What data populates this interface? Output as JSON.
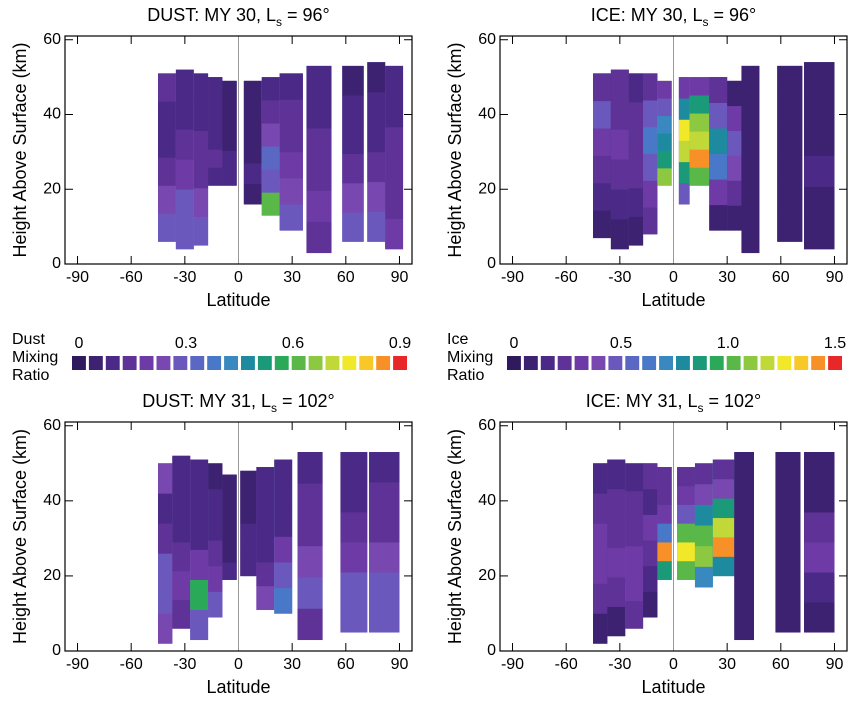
{
  "chart_data": [
    {
      "type": "heatmap",
      "title": "DUST: MY 30, L",
      "title_sub": "s",
      "title_end": " = 96°",
      "xlabel": "Latitude",
      "ylabel": "Height Above Surface (km)",
      "xlim": [
        -97,
        97
      ],
      "ylim": [
        0,
        61
      ],
      "xticks": [
        -90,
        -60,
        -30,
        0,
        30,
        60,
        90
      ],
      "yticks": [
        0,
        20,
        40,
        60
      ],
      "columns": [
        {
          "lat": [
            -45,
            -35
          ],
          "bottom": 6,
          "top": 51,
          "values": [
            0.3,
            0.25,
            0.15,
            0.1,
            0.1,
            0.12
          ]
        },
        {
          "lat": [
            -35,
            -25
          ],
          "bottom": 4,
          "top": 52,
          "values": [
            0.3,
            0.3,
            0.2,
            0.12,
            0.1,
            0.1
          ]
        },
        {
          "lat": [
            -25,
            -17
          ],
          "bottom": 5,
          "top": 51,
          "values": [
            0.3,
            0.25,
            0.15,
            0.12,
            0.1,
            0.1
          ]
        },
        {
          "lat": [
            -17,
            -9
          ],
          "bottom": 21,
          "top": 50,
          "values": [
            0.1,
            0.12,
            0.1,
            0.08,
            0.08,
            0.1
          ]
        },
        {
          "lat": [
            -9,
            -1
          ],
          "bottom": 21,
          "top": 49,
          "values": [
            0.08,
            0.08,
            0.06,
            0.06,
            0.06,
            0.06
          ]
        },
        {
          "lat": [
            3,
            13
          ],
          "bottom": 16,
          "top": 49,
          "values": [
            0.06,
            0.08,
            0.06,
            0.06,
            0.05,
            0.06
          ]
        },
        {
          "lat": [
            13,
            23
          ],
          "bottom": 13,
          "top": 50,
          "values": [
            0.6,
            0.3,
            0.35,
            0.25,
            0.15,
            0.1
          ]
        },
        {
          "lat": [
            23,
            36
          ],
          "bottom": 9,
          "top": 51,
          "values": [
            0.3,
            0.25,
            0.2,
            0.15,
            0.12,
            0.1
          ]
        },
        {
          "lat": [
            38,
            52
          ],
          "bottom": 3,
          "top": 53,
          "values": [
            0.15,
            0.2,
            0.15,
            0.12,
            0.1,
            0.1
          ]
        },
        {
          "lat": [
            58,
            70
          ],
          "bottom": 6,
          "top": 53,
          "values": [
            0.3,
            0.25,
            0.15,
            0.1,
            0.08,
            0.06
          ]
        },
        {
          "lat": [
            72,
            82
          ],
          "bottom": 6,
          "top": 54,
          "values": [
            0.3,
            0.25,
            0.15,
            0.1,
            0.08,
            0.06
          ]
        },
        {
          "lat": [
            82,
            92
          ],
          "bottom": 4,
          "top": 53,
          "values": [
            0.2,
            0.15,
            0.15,
            0.12,
            0.1,
            0.08
          ]
        }
      ]
    },
    {
      "type": "heatmap",
      "title": "ICE: MY 30, L",
      "title_sub": "s",
      "title_end": " = 96°",
      "xlabel": "Latitude",
      "ylabel": "Height Above Surface (km)",
      "xlim": [
        -97,
        97
      ],
      "ylim": [
        0,
        61
      ],
      "xticks": [
        -90,
        -60,
        -30,
        0,
        30,
        60,
        90
      ],
      "yticks": [
        0,
        20,
        40,
        60
      ],
      "columns": [
        {
          "lat": [
            -45,
            -35
          ],
          "bottom": 7,
          "top": 51,
          "values": [
            0.1,
            0.15,
            0.2,
            0.3,
            0.5,
            0.2
          ]
        },
        {
          "lat": [
            -35,
            -25
          ],
          "bottom": 4,
          "top": 52,
          "values": [
            0.1,
            0.15,
            0.2,
            0.3,
            0.25,
            0.2
          ]
        },
        {
          "lat": [
            -25,
            -17
          ],
          "bottom": 5,
          "top": 51,
          "values": [
            0.1,
            0.15,
            0.2,
            0.2,
            0.2,
            0.15
          ]
        },
        {
          "lat": [
            -17,
            -9
          ],
          "bottom": 8,
          "top": 51,
          "values": [
            0.2,
            0.3,
            0.5,
            0.6,
            0.5,
            0.2
          ]
        },
        {
          "lat": [
            -9,
            -1
          ],
          "bottom": 21,
          "top": 49,
          "values": [
            1.1,
            0.9,
            0.8,
            0.7,
            0.5,
            0.3
          ]
        },
        {
          "lat": [
            3,
            9
          ],
          "bottom": 16,
          "top": 50,
          "values": [
            0.5,
            0.9,
            1.2,
            1.3,
            0.8,
            0.3
          ]
        },
        {
          "lat": [
            9,
            20
          ],
          "bottom": 21,
          "top": 50,
          "values": [
            1.0,
            1.4,
            1.2,
            1.1,
            0.9,
            0.3
          ]
        },
        {
          "lat": [
            20,
            30
          ],
          "bottom": 9,
          "top": 50,
          "values": [
            0.1,
            0.3,
            0.6,
            0.8,
            0.5,
            0.2
          ]
        },
        {
          "lat": [
            30,
            38
          ],
          "bottom": 9,
          "top": 49,
          "values": [
            0.1,
            0.2,
            0.4,
            0.5,
            0.3,
            0.1
          ]
        },
        {
          "lat": [
            38,
            48
          ],
          "bottom": 3,
          "top": 53,
          "values": [
            0.05,
            0.05,
            0.05,
            0.05,
            0.05,
            0.05
          ]
        },
        {
          "lat": [
            58,
            72
          ],
          "bottom": 6,
          "top": 53,
          "values": [
            0.05,
            0.05,
            0.05,
            0.05,
            0.05,
            0.05
          ]
        },
        {
          "lat": [
            73,
            90
          ],
          "bottom": 4,
          "top": 54,
          "values": [
            0.1,
            0.1,
            0.15,
            0.1,
            0.1,
            0.1
          ]
        }
      ]
    },
    {
      "type": "heatmap",
      "title": "DUST: MY 31, L",
      "title_sub": "s",
      "title_end": " = 102°",
      "xlabel": "Latitude",
      "ylabel": "Height Above Surface (km)",
      "xlim": [
        -97,
        97
      ],
      "ylim": [
        0,
        61
      ],
      "xticks": [
        -90,
        -60,
        -30,
        0,
        30,
        60,
        90
      ],
      "yticks": [
        0,
        20,
        40,
        60
      ],
      "columns": [
        {
          "lat": [
            -45,
            -37
          ],
          "bottom": 2,
          "top": 50,
          "values": [
            0.25,
            0.3,
            0.3,
            0.15,
            0.1,
            0.25
          ]
        },
        {
          "lat": [
            -37,
            -27
          ],
          "bottom": 6,
          "top": 52,
          "values": [
            0.15,
            0.2,
            0.15,
            0.1,
            0.08,
            0.08
          ]
        },
        {
          "lat": [
            -27,
            -17
          ],
          "bottom": 3,
          "top": 51,
          "values": [
            0.3,
            0.55,
            0.2,
            0.1,
            0.08,
            0.08
          ]
        },
        {
          "lat": [
            -17,
            -9
          ],
          "bottom": 9,
          "top": 50,
          "values": [
            0.3,
            0.2,
            0.15,
            0.1,
            0.08,
            0.06
          ]
        },
        {
          "lat": [
            -9,
            -1
          ],
          "bottom": 19,
          "top": 47,
          "values": [
            0.08,
            0.06,
            0.06,
            0.05,
            0.05,
            0.06
          ]
        },
        {
          "lat": [
            1,
            10
          ],
          "bottom": 20,
          "top": 48,
          "values": [
            0.1,
            0.08,
            0.08,
            0.06,
            0.05,
            0.06
          ]
        },
        {
          "lat": [
            10,
            20
          ],
          "bottom": 11,
          "top": 49,
          "values": [
            0.25,
            0.15,
            0.1,
            0.1,
            0.08,
            0.08
          ]
        },
        {
          "lat": [
            20,
            30
          ],
          "bottom": 10,
          "top": 51,
          "values": [
            0.4,
            0.3,
            0.2,
            0.1,
            0.08,
            0.08
          ]
        },
        {
          "lat": [
            33,
            47
          ],
          "bottom": 3,
          "top": 53,
          "values": [
            0.15,
            0.3,
            0.25,
            0.15,
            0.12,
            0.1
          ]
        },
        {
          "lat": [
            57,
            72
          ],
          "bottom": 5,
          "top": 53,
          "values": [
            0.3,
            0.3,
            0.2,
            0.12,
            0.1,
            0.08
          ]
        },
        {
          "lat": [
            73,
            90
          ],
          "bottom": 5,
          "top": 53,
          "values": [
            0.3,
            0.3,
            0.25,
            0.15,
            0.12,
            0.1
          ]
        }
      ]
    },
    {
      "type": "heatmap",
      "title": "ICE: MY 31, L",
      "title_sub": "s",
      "title_end": " = 102°",
      "xlabel": "Latitude",
      "ylabel": "Height Above Surface (km)",
      "xlim": [
        -97,
        97
      ],
      "ylim": [
        0,
        61
      ],
      "xticks": [
        -90,
        -60,
        -30,
        0,
        30,
        60,
        90
      ],
      "yticks": [
        0,
        20,
        40,
        60
      ],
      "columns": [
        {
          "lat": [
            -45,
            -37
          ],
          "bottom": 2,
          "top": 50,
          "values": [
            0.1,
            0.2,
            0.3,
            0.3,
            0.2,
            0.15
          ]
        },
        {
          "lat": [
            -37,
            -27
          ],
          "bottom": 4,
          "top": 51,
          "values": [
            0.1,
            0.2,
            0.3,
            0.25,
            0.2,
            0.15
          ]
        },
        {
          "lat": [
            -27,
            -17
          ],
          "bottom": 6,
          "top": 50,
          "values": [
            0.2,
            0.3,
            0.3,
            0.2,
            0.2,
            0.15
          ]
        },
        {
          "lat": [
            -17,
            -9
          ],
          "bottom": 9,
          "top": 50,
          "values": [
            0.1,
            0.15,
            0.2,
            0.3,
            0.15,
            0.2
          ]
        },
        {
          "lat": [
            -9,
            -1
          ],
          "bottom": 19,
          "top": 49,
          "values": [
            0.9,
            1.4,
            0.6,
            0.3,
            0.2,
            0.2
          ]
        },
        {
          "lat": [
            2,
            12
          ],
          "bottom": 19,
          "top": 49,
          "values": [
            1.0,
            1.3,
            1.0,
            0.5,
            0.3,
            0.2
          ]
        },
        {
          "lat": [
            12,
            22
          ],
          "bottom": 17,
          "top": 50,
          "values": [
            0.7,
            1.1,
            1.0,
            0.8,
            0.4,
            0.2
          ]
        },
        {
          "lat": [
            22,
            34
          ],
          "bottom": 20,
          "top": 51,
          "values": [
            0.8,
            1.4,
            1.2,
            0.9,
            0.4,
            0.2
          ]
        },
        {
          "lat": [
            34,
            45
          ],
          "bottom": 3,
          "top": 53,
          "values": [
            0.05,
            0.05,
            0.05,
            0.05,
            0.05,
            0.05
          ]
        },
        {
          "lat": [
            57,
            71
          ],
          "bottom": 5,
          "top": 53,
          "values": [
            0.05,
            0.05,
            0.05,
            0.05,
            0.05,
            0.05
          ]
        },
        {
          "lat": [
            73,
            90
          ],
          "bottom": 5,
          "top": 53,
          "values": [
            0.1,
            0.15,
            0.3,
            0.2,
            0.1,
            0.1
          ]
        }
      ]
    }
  ],
  "colorbars": [
    {
      "label": [
        "Dust",
        "Mixing",
        "Ratio"
      ],
      "ticks": [
        0,
        0.3,
        0.6,
        0.9
      ],
      "colors": [
        "#2e1a5c",
        "#3c2270",
        "#4a2a86",
        "#5e3296",
        "#6e3aa6",
        "#7848b0",
        "#6a58bc",
        "#5a68c4",
        "#4a78c8",
        "#3a88c0",
        "#1e8aa0",
        "#1a9a78",
        "#2aaa58",
        "#5ab848",
        "#8cc840",
        "#c0d838",
        "#f0e828",
        "#f8c828",
        "#f89028",
        "#e82828"
      ]
    },
    {
      "label": [
        "Ice",
        "Mixing",
        "Ratio"
      ],
      "ticks": [
        0,
        0.5,
        {
          "value": 1,
          "label": "1.0"
        },
        1.5
      ],
      "colors": [
        "#2e1a5c",
        "#3c2270",
        "#4a2a86",
        "#5e3296",
        "#6e3aa6",
        "#7848b0",
        "#6a58bc",
        "#5a68c4",
        "#4a78c8",
        "#3a88c0",
        "#1e8aa0",
        "#1a9a78",
        "#2aaa58",
        "#5ab848",
        "#8cc840",
        "#c0d838",
        "#f0e828",
        "#f8c828",
        "#f89028",
        "#e82828"
      ]
    }
  ]
}
